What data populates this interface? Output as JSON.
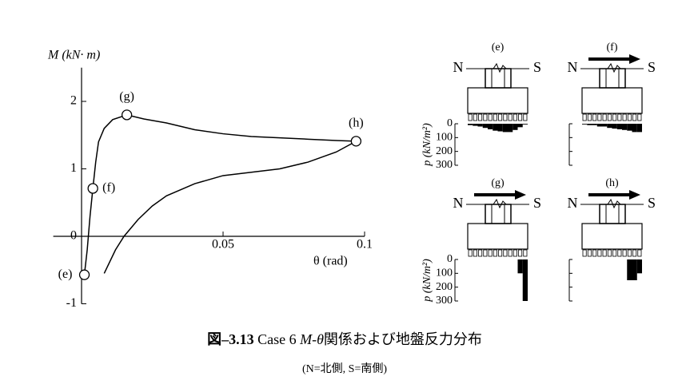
{
  "chart_data": [
    {
      "type": "line",
      "ylabel": "M  (kN· m)",
      "xlabel": "θ  (rad)",
      "xlim": [
        -0.01,
        0.1
      ],
      "ylim": [
        -1,
        2.5
      ],
      "xticks": [
        0,
        0.05,
        0.1
      ],
      "yticks": [
        -1,
        0,
        1,
        2
      ],
      "color": "#000000",
      "x": [
        0.001,
        0.002,
        0.003,
        0.004,
        0.005,
        0.006,
        0.008,
        0.011,
        0.016,
        0.022,
        0.03,
        0.04,
        0.05,
        0.06,
        0.07,
        0.08,
        0.09,
        0.097,
        0.09,
        0.08,
        0.07,
        0.06,
        0.05,
        0.04,
        0.03,
        0.025,
        0.02,
        0.015,
        0.012,
        0.008
      ],
      "values": [
        -0.57,
        -0.2,
        0.3,
        0.71,
        1.1,
        1.4,
        1.6,
        1.73,
        1.8,
        1.74,
        1.68,
        1.58,
        1.52,
        1.48,
        1.46,
        1.44,
        1.42,
        1.41,
        1.25,
        1.1,
        1.0,
        0.95,
        0.9,
        0.78,
        0.6,
        0.45,
        0.25,
        0.0,
        -0.2,
        -0.55
      ],
      "markers": [
        {
          "label": "(e)",
          "x": 0.001,
          "y": -0.57
        },
        {
          "label": "(f)",
          "x": 0.004,
          "y": 0.71
        },
        {
          "label": "(g)",
          "x": 0.016,
          "y": 1.8
        },
        {
          "label": "(h)",
          "x": 0.097,
          "y": 1.41
        }
      ]
    },
    {
      "type": "bar",
      "title": "(e)",
      "left_label": "N",
      "right_label": "S",
      "arrow": false,
      "ylabel": "p  (kN/m²)",
      "tick_labels": true,
      "ylim": [
        0,
        300
      ],
      "yticks": [
        0,
        100,
        200,
        300
      ],
      "color": "#000000",
      "values": [
        10,
        15,
        20,
        30,
        40,
        50,
        55,
        60,
        60,
        45,
        25,
        5
      ]
    },
    {
      "type": "bar",
      "title": "(f)",
      "left_label": "N",
      "right_label": "S",
      "arrow": true,
      "tick_labels": false,
      "ylim": [
        0,
        300
      ],
      "yticks": [
        0,
        100,
        200,
        300
      ],
      "color": "#000000",
      "values": [
        5,
        10,
        10,
        20,
        20,
        30,
        35,
        40,
        45,
        50,
        60,
        60
      ]
    },
    {
      "type": "bar",
      "title": "(g)",
      "left_label": "N",
      "right_label": "S",
      "arrow": true,
      "ylabel": "p  (kN/m²)",
      "tick_labels": true,
      "ylim": [
        0,
        300
      ],
      "yticks": [
        0,
        100,
        200,
        300
      ],
      "color": "#000000",
      "values": [
        0,
        0,
        0,
        0,
        0,
        0,
        0,
        0,
        0,
        0,
        100,
        300
      ]
    },
    {
      "type": "bar",
      "title": "(h)",
      "left_label": "N",
      "right_label": "S",
      "arrow": true,
      "tick_labels": false,
      "ylim": [
        0,
        300
      ],
      "yticks": [
        0,
        100,
        200,
        300
      ],
      "color": "#000000",
      "values": [
        0,
        0,
        0,
        0,
        0,
        0,
        0,
        0,
        0,
        150,
        150,
        100
      ]
    }
  ],
  "caption": {
    "number": "図–3.13",
    "case": "Case 6",
    "mtheta": "M-θ",
    "rest": "関係および地盤反力分布",
    "note": "(N=北側, S=南側)"
  }
}
